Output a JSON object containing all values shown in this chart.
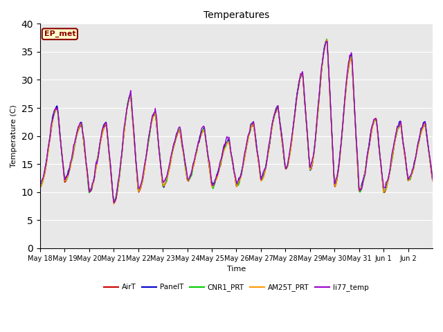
{
  "title": "Temperatures",
  "xlabel": "Time",
  "ylabel": "Temperature (C)",
  "annotation_text": "EP_met",
  "annotation_bg": "#ffffcc",
  "annotation_border": "#8b0000",
  "annotation_text_color": "#8b0000",
  "ylim": [
    0,
    40
  ],
  "yticks": [
    0,
    5,
    10,
    15,
    20,
    25,
    30,
    35,
    40
  ],
  "series_colors": {
    "AirT": "#cc0000",
    "PanelT": "#0000cc",
    "CNR1_PRT": "#00cc00",
    "AM25T_PRT": "#ff9900",
    "li77_temp": "#9900cc"
  },
  "bg_color": "#e8e8e8",
  "grid_color": "#ffffff",
  "line_width": 1.0,
  "tick_labels": [
    "May 18",
    "May 19",
    "May 20",
    "May 21",
    "May 22",
    "May 23",
    "May 24",
    "May 25",
    "May 26",
    "May 27",
    "May 28",
    "May 29",
    "May 30",
    "May 31",
    "Jun 1",
    "Jun 2"
  ],
  "figsize": [
    6.4,
    4.8
  ],
  "dpi": 100,
  "day_peaks": [
    25,
    22,
    22,
    27,
    24,
    21,
    21,
    19,
    22,
    25,
    31,
    37,
    34,
    23,
    22,
    22
  ],
  "day_mins": [
    11,
    12,
    10,
    8,
    10,
    11,
    12,
    11,
    11,
    12,
    14,
    14,
    11,
    10,
    10,
    12
  ]
}
